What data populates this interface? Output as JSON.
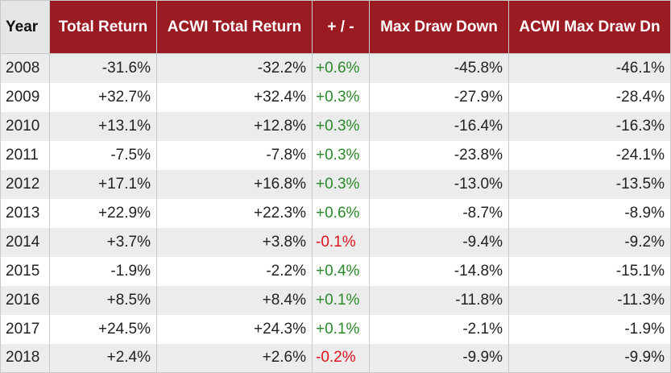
{
  "colors": {
    "header_bg": "#9b1b23",
    "header_text": "#ffffff",
    "positive": "#2a8a2a",
    "negative": "#e0141e"
  },
  "table": {
    "headers": [
      "Year",
      "Total Return",
      "ACWI Total Return",
      "+ / -",
      "Max Draw Down",
      "ACWI Max Draw Dn"
    ],
    "rows": [
      {
        "year": "2008",
        "total_return": "-31.6%",
        "acwi_total_return": "-32.2%",
        "diff": "+0.6%",
        "diff_sign": "positive",
        "max_draw_down": "-45.8%",
        "acwi_max_draw_dn": "-46.1%"
      },
      {
        "year": "2009",
        "total_return": "+32.7%",
        "acwi_total_return": "+32.4%",
        "diff": "+0.3%",
        "diff_sign": "positive",
        "max_draw_down": "-27.9%",
        "acwi_max_draw_dn": "-28.4%"
      },
      {
        "year": "2010",
        "total_return": "+13.1%",
        "acwi_total_return": "+12.8%",
        "diff": "+0.3%",
        "diff_sign": "positive",
        "max_draw_down": "-16.4%",
        "acwi_max_draw_dn": "-16.3%"
      },
      {
        "year": "2011",
        "total_return": "-7.5%",
        "acwi_total_return": "-7.8%",
        "diff": "+0.3%",
        "diff_sign": "positive",
        "max_draw_down": "-23.8%",
        "acwi_max_draw_dn": "-24.1%"
      },
      {
        "year": "2012",
        "total_return": "+17.1%",
        "acwi_total_return": "+16.8%",
        "diff": "+0.3%",
        "diff_sign": "positive",
        "max_draw_down": "-13.0%",
        "acwi_max_draw_dn": "-13.5%"
      },
      {
        "year": "2013",
        "total_return": "+22.9%",
        "acwi_total_return": "+22.3%",
        "diff": "+0.6%",
        "diff_sign": "positive",
        "max_draw_down": "-8.7%",
        "acwi_max_draw_dn": "-8.9%"
      },
      {
        "year": "2014",
        "total_return": "+3.7%",
        "acwi_total_return": "+3.8%",
        "diff": "-0.1%",
        "diff_sign": "negative",
        "max_draw_down": "-9.4%",
        "acwi_max_draw_dn": "-9.2%"
      },
      {
        "year": "2015",
        "total_return": "-1.9%",
        "acwi_total_return": "-2.2%",
        "diff": "+0.4%",
        "diff_sign": "positive",
        "max_draw_down": "-14.8%",
        "acwi_max_draw_dn": "-15.1%"
      },
      {
        "year": "2016",
        "total_return": "+8.5%",
        "acwi_total_return": "+8.4%",
        "diff": "+0.1%",
        "diff_sign": "positive",
        "max_draw_down": "-11.8%",
        "acwi_max_draw_dn": "-11.3%"
      },
      {
        "year": "2017",
        "total_return": "+24.5%",
        "acwi_total_return": "+24.3%",
        "diff": "+0.1%",
        "diff_sign": "positive",
        "max_draw_down": "-2.1%",
        "acwi_max_draw_dn": "-1.9%"
      },
      {
        "year": "2018",
        "total_return": "+2.4%",
        "acwi_total_return": "+2.6%",
        "diff": "-0.2%",
        "diff_sign": "negative",
        "max_draw_down": "-9.9%",
        "acwi_max_draw_dn": "-9.9%"
      }
    ]
  }
}
